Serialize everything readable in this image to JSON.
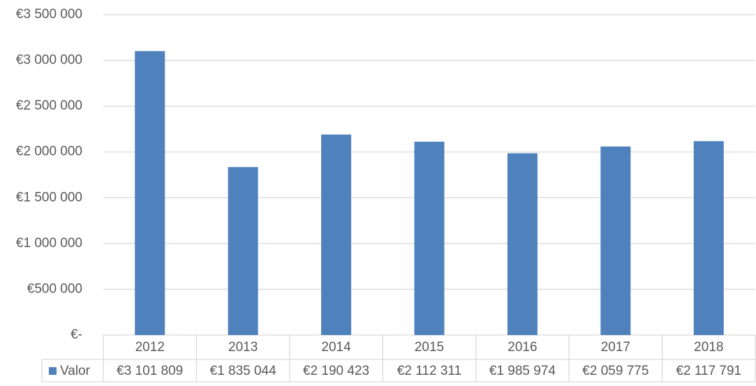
{
  "chart_data": {
    "type": "bar",
    "categories": [
      "2012",
      "2013",
      "2014",
      "2015",
      "2016",
      "2017",
      "2018"
    ],
    "series": [
      {
        "name": "Valor",
        "color": "#4f81bd",
        "values": [
          3101809,
          1835044,
          2190423,
          2112311,
          1985974,
          2059775,
          2117791
        ],
        "value_labels": [
          "€3 101 809",
          "€1 835 044",
          "€2 190 423",
          "€2 112 311",
          "€1 985 974",
          "€2 059 775",
          "€2 117 791"
        ]
      }
    ],
    "ylim": [
      0,
      3500000
    ],
    "yticks": [
      {
        "value": 0,
        "label": "€-"
      },
      {
        "value": 500000,
        "label": "€500 000"
      },
      {
        "value": 1000000,
        "label": "€1 000 000"
      },
      {
        "value": 1500000,
        "label": "€1 500 000"
      },
      {
        "value": 2000000,
        "label": "€2 000 000"
      },
      {
        "value": 2500000,
        "label": "€2 500 000"
      },
      {
        "value": 3000000,
        "label": "€3 000 000"
      },
      {
        "value": 3500000,
        "label": "€3 500 000"
      }
    ],
    "grid": true
  }
}
